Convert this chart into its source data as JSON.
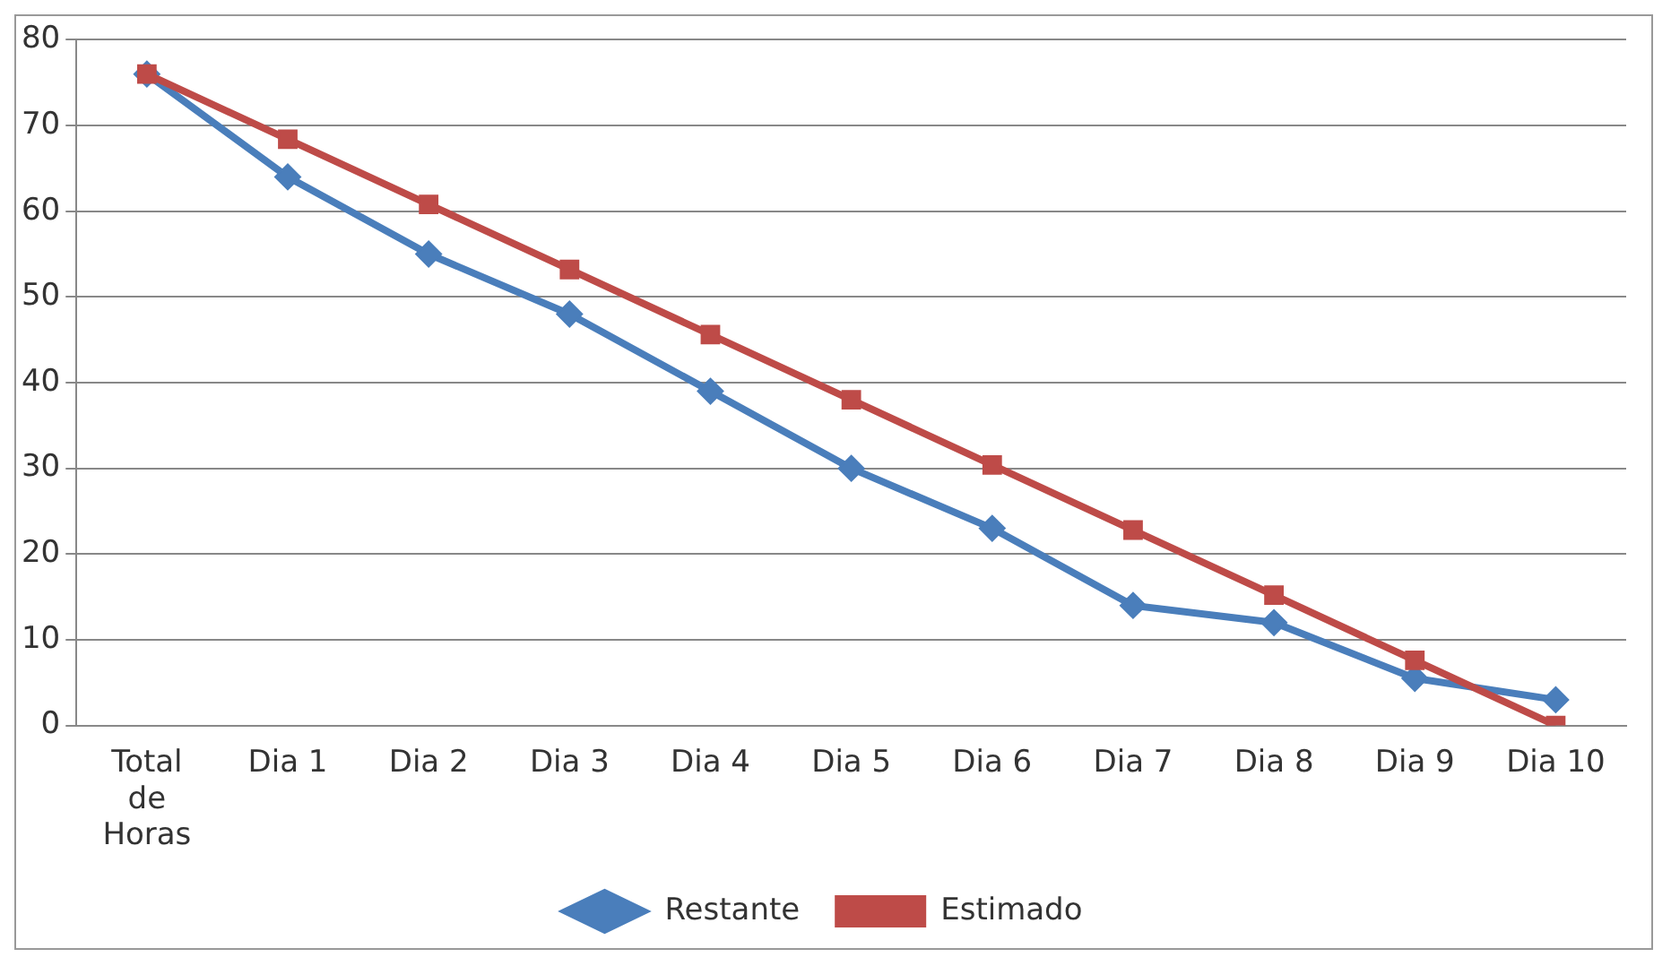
{
  "chart_data": {
    "type": "line",
    "categories": [
      "Total de Horas",
      "Dia 1",
      "Dia 2",
      "Dia 3",
      "Dia 4",
      "Dia 5",
      "Dia 6",
      "Dia 7",
      "Dia 8",
      "Dia 9",
      "Dia 10"
    ],
    "series": [
      {
        "name": "Restante",
        "color": "#4a7ebb",
        "marker": "diamond",
        "values": [
          76,
          64,
          55,
          48,
          39,
          30,
          23,
          14,
          12,
          5.5,
          3
        ]
      },
      {
        "name": "Estimado",
        "color": "#be4b48",
        "marker": "square",
        "values": [
          76,
          68.4,
          60.8,
          53.2,
          45.6,
          38,
          30.4,
          22.8,
          15.2,
          7.6,
          0
        ]
      }
    ],
    "ylim": [
      0,
      80
    ],
    "yticks": [
      0,
      10,
      20,
      30,
      40,
      50,
      60,
      70,
      80
    ],
    "grid": "y",
    "legend": "bottom",
    "line_style": "solid"
  }
}
